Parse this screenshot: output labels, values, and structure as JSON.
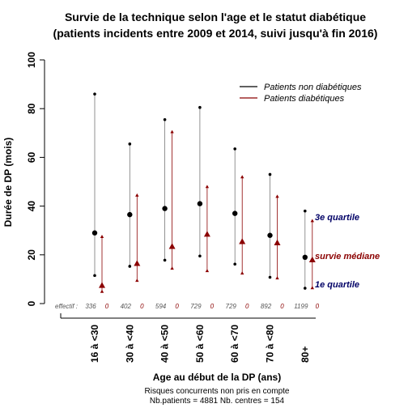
{
  "chart_data": {
    "type": "range-dot",
    "title_line1": "Survie de la technique selon l'age et le statut diabétique",
    "title_line2": "(patients incidents entre 2009 et 2014, suivi jusqu'à fin 2016)",
    "xlabel": "Age au début de la DP (ans)",
    "ylabel": "Durée de DP (mois)",
    "ylim": [
      0,
      100
    ],
    "yticks": [
      "0",
      "20",
      "40",
      "60",
      "80",
      "100"
    ],
    "categories": [
      "16 à <30",
      "30 à <40",
      "40 à <50",
      "50 à <60",
      "60 à <70",
      "70 à <80",
      "80+"
    ],
    "effectif_label": "effectif :",
    "series": [
      {
        "name": "Patients non diabétiques",
        "color": "#000000",
        "marker": "circle",
        "q1": [
          11.5,
          15.3,
          17.8,
          19.5,
          16.2,
          10.8,
          6.3
        ],
        "median": [
          29,
          36.5,
          39,
          41,
          37,
          28,
          19
        ],
        "q3": [
          86,
          65.5,
          75.5,
          80.5,
          63.5,
          53,
          38
        ],
        "effectif": [
          "336",
          "402",
          "594",
          "729",
          "729",
          "892",
          "1199"
        ]
      },
      {
        "name": "Patients diabétiques",
        "color": "#8b0000",
        "marker": "triangle",
        "q1": [
          5,
          9.5,
          14.5,
          13.5,
          12.5,
          10.5,
          6.5
        ],
        "median": [
          7.5,
          16.5,
          23.5,
          28.5,
          25.5,
          25,
          18
        ],
        "q3": [
          27.5,
          44.5,
          70.5,
          48,
          52,
          44,
          34
        ],
        "effectif": [
          "0",
          "0",
          "0",
          "0",
          "0",
          "0",
          "0"
        ]
      }
    ],
    "annotations": {
      "q3_label": "3e quartile",
      "median_label": "survie médiane",
      "q1_label": "1e quartile"
    },
    "footer": {
      "line1": "Risques concurrents non pris en compte",
      "line2": "Nb.patients =  4881     Nb. centres =  154"
    },
    "colors": {
      "annot_dark": "#000066",
      "annot_red": "#8b0000",
      "line_grey": "#777777"
    }
  }
}
